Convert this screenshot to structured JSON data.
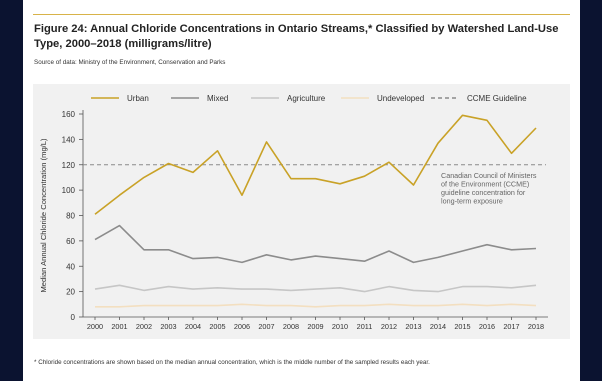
{
  "figure": {
    "title": "Figure 24: Annual Chloride Concentrations in Ontario Streams,* Classified by Watershed Land-Use Type, 2000–2018 (milligrams/litre)",
    "source": "Source of data: Ministry of the Environment, Conservation and Parks",
    "footnote": "* Chloride concentrations are shown based on the median annual concentration, which is the middle number of the sampled results each year."
  },
  "colors": {
    "urban": "#c9a227",
    "mixed": "#8c8c8c",
    "agriculture": "#c6c6c6",
    "undeveloped": "#f3dfc0",
    "guideline": "#8a8a8a",
    "accent_line": "#d8b349",
    "page_bg": "#0b1330"
  },
  "chart_data": {
    "type": "line",
    "ylabel": "Median Annual Chloride Concentration (mg/L)",
    "xlabel": "",
    "ylim": [
      0,
      160
    ],
    "yticks": [
      0,
      20,
      40,
      60,
      80,
      100,
      120,
      140,
      160
    ],
    "x": [
      "2000",
      "2001",
      "2002",
      "2003",
      "2004",
      "2005",
      "2006",
      "2007",
      "2008",
      "2009",
      "2010",
      "2011",
      "2012",
      "2013",
      "2014",
      "2015",
      "2016",
      "2017",
      "2018"
    ],
    "legend_position": "top",
    "grid": false,
    "series": [
      {
        "name": "Urban",
        "color_key": "urban",
        "values": [
          81,
          96,
          110,
          121,
          114,
          131,
          96,
          138,
          109,
          109,
          105,
          111,
          122,
          104,
          137,
          159,
          155,
          129,
          149
        ]
      },
      {
        "name": "Mixed",
        "color_key": "mixed",
        "values": [
          61,
          72,
          53,
          53,
          46,
          47,
          43,
          49,
          45,
          48,
          46,
          44,
          52,
          43,
          47,
          52,
          57,
          53,
          54
        ]
      },
      {
        "name": "Agriculture",
        "color_key": "agriculture",
        "values": [
          22,
          25,
          21,
          24,
          22,
          23,
          22,
          22,
          21,
          22,
          23,
          20,
          24,
          21,
          20,
          24,
          24,
          23,
          25
        ]
      },
      {
        "name": "Undeveloped",
        "color_key": "undeveloped",
        "values": [
          8,
          8,
          9,
          9,
          9,
          9,
          10,
          9,
          9,
          8,
          9,
          9,
          10,
          9,
          9,
          10,
          9,
          10,
          9
        ]
      }
    ],
    "guideline": {
      "name": "CCME Guideline",
      "value": 120,
      "color_key": "guideline"
    },
    "annotation": [
      "Canadian Council of Ministers",
      "of the Environment (CCME)",
      "guideline concentration for",
      "long-term exposure"
    ]
  }
}
